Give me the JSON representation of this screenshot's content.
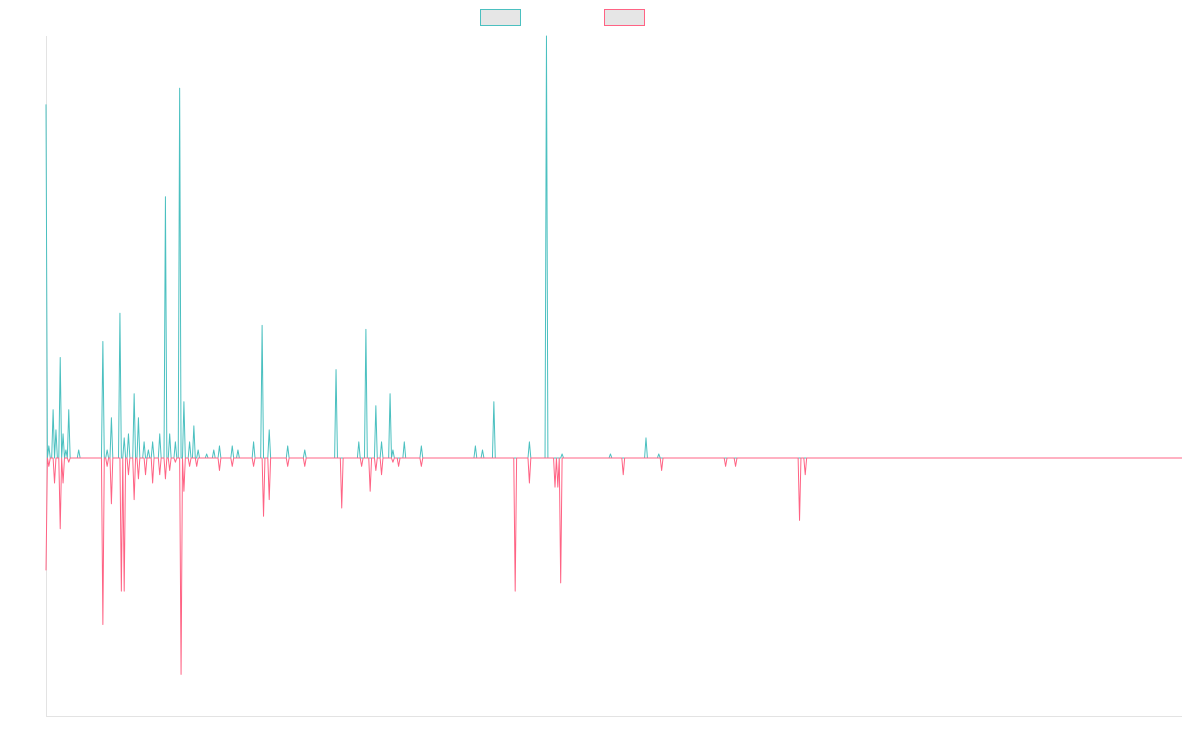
{
  "chart_data": {
    "type": "line",
    "title": "",
    "xlabel": "",
    "ylabel": "",
    "grid": false,
    "legend_position": "top-center",
    "x_count": 800,
    "ylim": [
      -100,
      100
    ],
    "series": [
      {
        "color": "#4bc0c0",
        "sign": 1,
        "baseline": 0,
        "values_sparse": [
          [
            0,
            88
          ],
          [
            2,
            3
          ],
          [
            5,
            12
          ],
          [
            7,
            7
          ],
          [
            10,
            25
          ],
          [
            12,
            6
          ],
          [
            14,
            2
          ],
          [
            16,
            12
          ],
          [
            23,
            2
          ],
          [
            40,
            29
          ],
          [
            43,
            2
          ],
          [
            46,
            10
          ],
          [
            52,
            36
          ],
          [
            55,
            5
          ],
          [
            58,
            6
          ],
          [
            62,
            16
          ],
          [
            65,
            10
          ],
          [
            69,
            4
          ],
          [
            72,
            2
          ],
          [
            75,
            4
          ],
          [
            80,
            6
          ],
          [
            84,
            65
          ],
          [
            87,
            6
          ],
          [
            91,
            4
          ],
          [
            94,
            92
          ],
          [
            97,
            14
          ],
          [
            101,
            4
          ],
          [
            104,
            8
          ],
          [
            107,
            2
          ],
          [
            113,
            1
          ],
          [
            118,
            2
          ],
          [
            122,
            3
          ],
          [
            131,
            3
          ],
          [
            135,
            2
          ],
          [
            146,
            4
          ],
          [
            152,
            33
          ],
          [
            157,
            7
          ],
          [
            170,
            3
          ],
          [
            182,
            2
          ],
          [
            204,
            22
          ],
          [
            220,
            4
          ],
          [
            225,
            32
          ],
          [
            232,
            13
          ],
          [
            236,
            4
          ],
          [
            242,
            16
          ],
          [
            244,
            2
          ],
          [
            252,
            4
          ],
          [
            264,
            3
          ],
          [
            302,
            3
          ],
          [
            307,
            2
          ],
          [
            315,
            14
          ],
          [
            340,
            4
          ],
          [
            352,
            105
          ],
          [
            363,
            1
          ],
          [
            397,
            1
          ],
          [
            422,
            5
          ],
          [
            431,
            1
          ]
        ]
      },
      {
        "color": "#ff6384",
        "sign": -1,
        "baseline": 0,
        "values_sparse": [
          [
            0,
            27
          ],
          [
            2,
            2
          ],
          [
            6,
            6
          ],
          [
            10,
            17
          ],
          [
            12,
            6
          ],
          [
            16,
            1
          ],
          [
            40,
            40
          ],
          [
            43,
            2
          ],
          [
            46,
            11
          ],
          [
            53,
            32
          ],
          [
            55,
            32
          ],
          [
            58,
            4
          ],
          [
            62,
            10
          ],
          [
            65,
            5
          ],
          [
            70,
            4
          ],
          [
            75,
            6
          ],
          [
            80,
            4
          ],
          [
            84,
            5
          ],
          [
            87,
            3
          ],
          [
            91,
            1
          ],
          [
            95,
            52
          ],
          [
            97,
            8
          ],
          [
            101,
            2
          ],
          [
            106,
            2
          ],
          [
            122,
            3
          ],
          [
            131,
            2
          ],
          [
            146,
            2
          ],
          [
            153,
            14
          ],
          [
            157,
            10
          ],
          [
            170,
            2
          ],
          [
            182,
            2
          ],
          [
            208,
            12
          ],
          [
            222,
            2
          ],
          [
            228,
            8
          ],
          [
            232,
            3
          ],
          [
            236,
            4
          ],
          [
            244,
            1
          ],
          [
            248,
            2
          ],
          [
            264,
            2
          ],
          [
            330,
            32
          ],
          [
            340,
            6
          ],
          [
            358,
            7
          ],
          [
            360,
            7
          ],
          [
            362,
            30
          ],
          [
            406,
            4
          ],
          [
            433,
            3
          ],
          [
            478,
            2
          ],
          [
            485,
            2
          ],
          [
            530,
            15
          ],
          [
            534,
            4
          ]
        ]
      }
    ]
  }
}
